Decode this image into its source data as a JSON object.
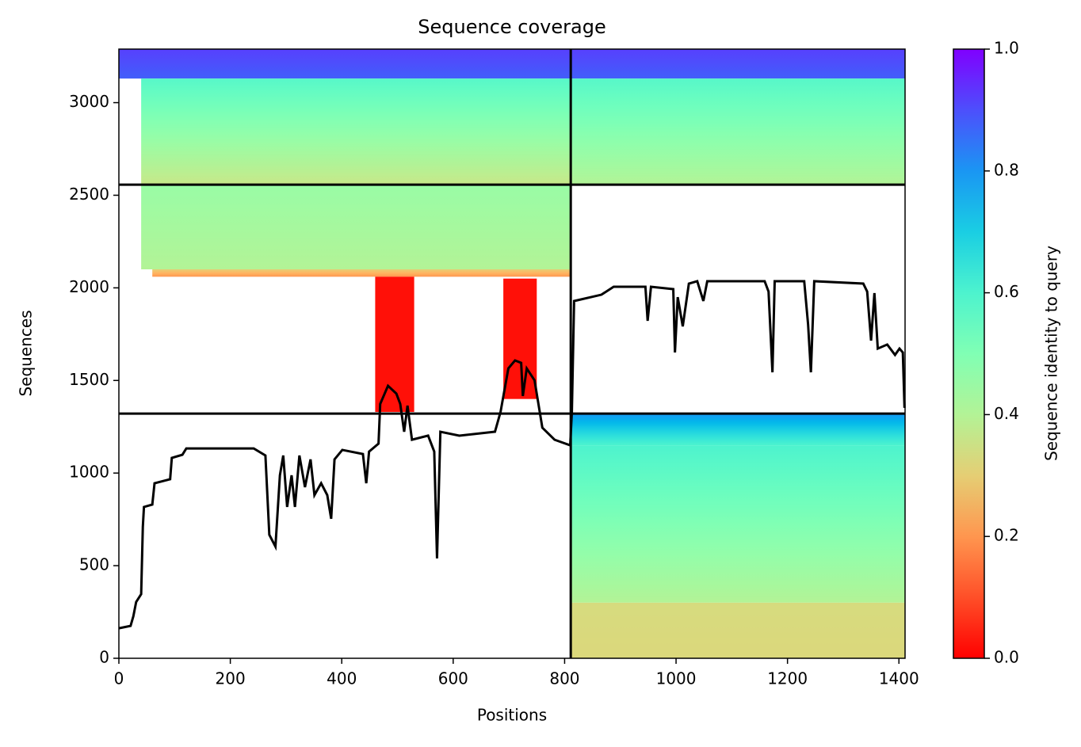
{
  "chart_data": {
    "type": "coverage",
    "title": "Sequence coverage",
    "x_label": "Positions",
    "y_label": "Sequences",
    "xlim": [
      0,
      1411
    ],
    "xticks": [
      0,
      200,
      400,
      600,
      800,
      1000,
      1200,
      1400
    ],
    "ylim": [
      0,
      3289
    ],
    "yticks": [
      0,
      500,
      1000,
      1500,
      2000,
      2500,
      3000
    ],
    "colormap": "rainbow_r",
    "colorbar": {
      "label": "Sequence identity to query",
      "lim": [
        0,
        1
      ],
      "ticks": [
        {
          "value": 0,
          "label": "0.0"
        },
        0.2,
        0.4,
        0.6,
        0.8,
        {
          "value": 1,
          "label": "1.0"
        }
      ]
    },
    "blocks": [
      {
        "x": [
          0,
          811
        ],
        "y": [
          3130,
          3289
        ],
        "identity": [
          0.88,
          0.92
        ]
      },
      {
        "x": [
          40,
          811
        ],
        "y": [
          2557,
          3130
        ],
        "identity": [
          0.36,
          0.58
        ]
      },
      {
        "x": [
          811,
          1411
        ],
        "y": [
          3130,
          3289
        ],
        "identity": [
          0.88,
          0.92
        ]
      },
      {
        "x": [
          811,
          1411
        ],
        "y": [
          2557,
          3130
        ],
        "identity": [
          0.4,
          0.58
        ]
      },
      {
        "x": [
          40,
          811
        ],
        "y": [
          2100,
          2557
        ],
        "identity": [
          0.4,
          0.45
        ]
      },
      {
        "x": [
          60,
          811
        ],
        "y": [
          2060,
          2100
        ],
        "identity": [
          0.2,
          0.3
        ]
      },
      {
        "x": [
          460,
          530
        ],
        "y": [
          1330,
          2060
        ],
        "identity": [
          0.02,
          0.02
        ]
      },
      {
        "x": [
          690,
          750
        ],
        "y": [
          1400,
          2050
        ],
        "identity": [
          0.02,
          0.02
        ]
      },
      {
        "x": [
          811,
          1411
        ],
        "y": [
          1150,
          1321
        ],
        "identity": [
          0.6,
          0.8
        ]
      },
      {
        "x": [
          811,
          1411
        ],
        "y": [
          300,
          1150
        ],
        "identity": [
          0.4,
          0.6
        ]
      },
      {
        "x": [
          811,
          1411
        ],
        "y": [
          0,
          300
        ],
        "identity": [
          0.32,
          0.33
        ]
      }
    ],
    "dividers": {
      "x": [
        811
      ],
      "y": [
        1321,
        2557
      ]
    },
    "coverage": {
      "color": "#000000",
      "x": [
        0,
        21,
        26,
        31,
        40,
        43,
        45,
        60,
        64,
        92,
        95,
        114,
        121,
        242,
        263,
        270,
        281,
        289,
        295,
        302,
        310,
        316,
        324,
        334,
        344,
        351,
        363,
        374,
        381,
        387,
        401,
        438,
        444,
        449,
        466,
        469,
        483,
        498,
        505,
        512,
        518,
        526,
        555,
        566,
        571,
        577,
        611,
        675,
        685,
        699,
        711,
        722,
        725,
        732,
        746,
        760,
        782,
        810,
        813,
        817,
        866,
        888,
        945,
        949,
        955,
        995,
        998,
        1003,
        1012,
        1023,
        1038,
        1049,
        1056,
        1159,
        1166,
        1173,
        1177,
        1230,
        1237,
        1242,
        1248,
        1336,
        1343,
        1350,
        1356,
        1362,
        1379,
        1393,
        1401,
        1407,
        1410
      ],
      "values": [
        162,
        175,
        227,
        304,
        346,
        710,
        817,
        830,
        945,
        967,
        1082,
        1099,
        1133,
        1133,
        1095,
        667,
        603,
        988,
        1095,
        817,
        988,
        817,
        1095,
        924,
        1074,
        881,
        945,
        881,
        753,
        1074,
        1125,
        1103,
        945,
        1116,
        1159,
        1373,
        1471,
        1429,
        1373,
        1223,
        1364,
        1180,
        1202,
        1116,
        539,
        1223,
        1202,
        1223,
        1330,
        1565,
        1608,
        1595,
        1416,
        1565,
        1501,
        1245,
        1180,
        1150,
        1330,
        1929,
        1963,
        2006,
        2006,
        1822,
        2006,
        1993,
        1651,
        1950,
        1792,
        2023,
        2036,
        1929,
        2036,
        2036,
        1980,
        1544,
        2036,
        2036,
        1801,
        1544,
        2036,
        2023,
        1980,
        1715,
        1972,
        1672,
        1694,
        1638,
        1672,
        1651,
        1352
      ]
    }
  }
}
